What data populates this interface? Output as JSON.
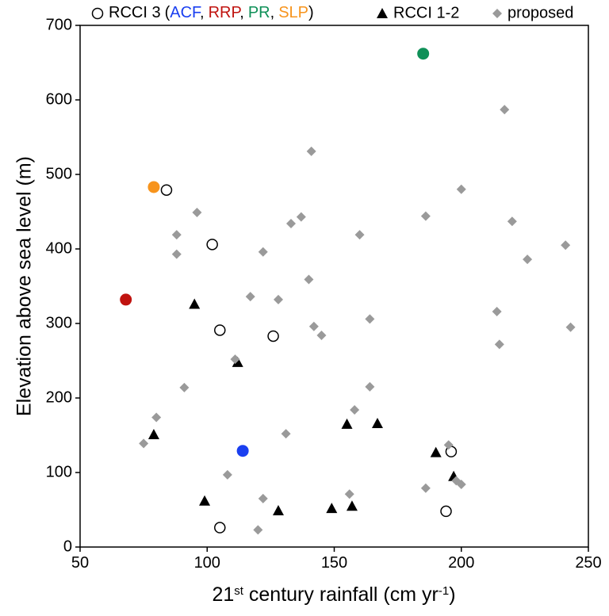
{
  "chart_data": {
    "type": "scatter",
    "xlabel_parts": [
      {
        "text": "21"
      },
      {
        "text": "st",
        "sup": true
      },
      {
        "text": " century rainfall (cm yr"
      },
      {
        "text": "-1",
        "sup": true
      },
      {
        "text": ")"
      }
    ],
    "ylabel": "Elevation above sea level (m)",
    "xlim": [
      50,
      250
    ],
    "xticks": [
      50,
      100,
      150,
      200,
      250
    ],
    "ylim": [
      0,
      700
    ],
    "yticks": [
      0,
      100,
      200,
      300,
      400,
      500,
      600,
      700
    ],
    "legend": {
      "open": "(",
      "separator": ",",
      "close": ")"
    },
    "series": [
      {
        "name": "RCCI 3",
        "marker": "circle-open",
        "color": "#000000",
        "x": [
          84,
          102,
          105,
          126,
          196,
          194,
          105
        ],
        "y": [
          479,
          406,
          291,
          283,
          128,
          48,
          26
        ]
      },
      {
        "name": "ACF",
        "marker": "circle",
        "color": "#1a3ff0",
        "x": [
          114
        ],
        "y": [
          129
        ]
      },
      {
        "name": "RRP",
        "marker": "circle",
        "color": "#c0130f",
        "x": [
          68
        ],
        "y": [
          332
        ]
      },
      {
        "name": "PR",
        "marker": "circle",
        "color": "#0f9058",
        "x": [
          185
        ],
        "y": [
          662
        ]
      },
      {
        "name": "SLP",
        "marker": "circle",
        "color": "#f7941d",
        "x": [
          79
        ],
        "y": [
          483
        ]
      },
      {
        "name": "RCCI 1-2",
        "marker": "triangle",
        "color": "#000000",
        "x": [
          95,
          112,
          79,
          99,
          128,
          149,
          157,
          155,
          167,
          190,
          197
        ],
        "y": [
          326,
          248,
          151,
          62,
          49,
          52,
          55,
          165,
          166,
          127,
          95
        ]
      },
      {
        "name": "proposed",
        "marker": "diamond",
        "color": "#9a9a9a",
        "x": [
          217,
          141,
          200,
          96,
          137,
          133,
          186,
          88,
          160,
          220,
          88,
          122,
          241,
          226,
          140,
          117,
          128,
          214,
          142,
          145,
          164,
          243,
          215,
          111,
          91,
          164,
          80,
          158,
          75,
          131,
          195,
          108,
          198,
          200,
          122,
          156,
          186,
          120
        ],
        "y": [
          587,
          531,
          480,
          449,
          443,
          434,
          444,
          419,
          419,
          437,
          393,
          396,
          405,
          386,
          359,
          336,
          332,
          316,
          296,
          284,
          306,
          295,
          272,
          252,
          214,
          215,
          174,
          184,
          139,
          152,
          137,
          97,
          89,
          84,
          65,
          71,
          79,
          23
        ]
      }
    ]
  }
}
